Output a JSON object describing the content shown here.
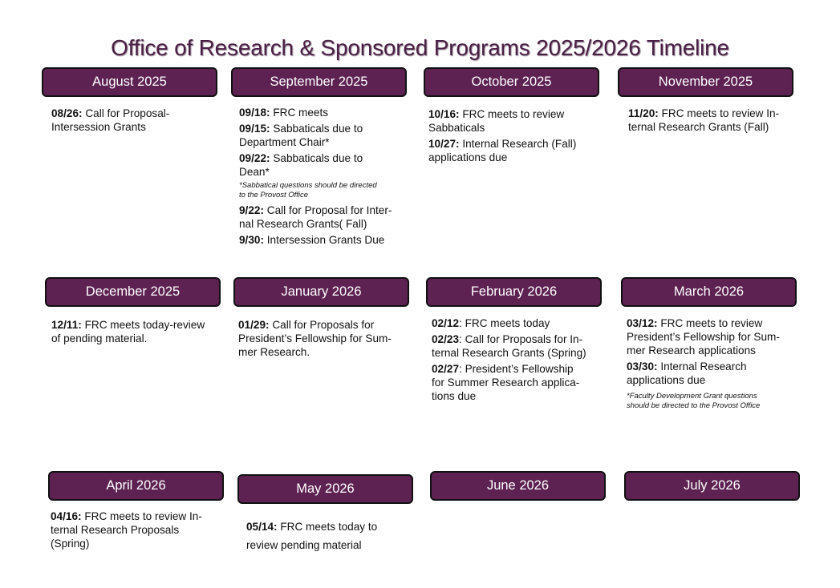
{
  "title": "Office of Research & Sponsored Programs 2025/2026 Timeline",
  "months": [
    {
      "name": "August 2025",
      "entries": [
        {
          "date": "08/26:",
          "text": " Call for Proposal-\nIntersession Grants"
        }
      ]
    },
    {
      "name": "September 2025",
      "entries": [
        {
          "date": "09/18:",
          "text": " FRC meets"
        },
        {
          "date": "09/15:",
          "text": " Sabbaticals due to\nDepartment Chair*"
        },
        {
          "date": "09/22:",
          "text": " Sabbaticals due to\nDean*"
        },
        {
          "date": "9/22:",
          "text": " Call for Proposal for Inter-\nnal Research  Grants( Fall)"
        },
        {
          "date": "9/30:",
          "text": " Intersession Grants Due"
        }
      ],
      "note": "*Sabbatical questions should be directed\nto the Provost Office"
    },
    {
      "name": "October 2025",
      "entries": [
        {
          "date": "10/16:",
          "text": " FRC meets to review\nSabbaticals"
        },
        {
          "date": "10/27:",
          "text": " Internal Research  (Fall)\napplications due"
        }
      ]
    },
    {
      "name": "November 2025",
      "entries": [
        {
          "date": "11/20:",
          "text": " FRC meets to review In-\nternal Research Grants (Fall)"
        }
      ]
    },
    {
      "name": "December 2025",
      "entries": [
        {
          "date": "12/11:",
          "text": " FRC meets today-review\nof pending material."
        }
      ]
    },
    {
      "name": "January 2026",
      "entries": [
        {
          "date": "01/29:",
          "text": " Call for Proposals for\nPresident’s Fellowship for Sum-\nmer Research."
        }
      ]
    },
    {
      "name": "February 2026",
      "entries": [
        {
          "date": "02/12",
          "text": ": FRC meets today"
        },
        {
          "date": "02/23",
          "text": ": Call for Proposals for In-\nternal Research Grants (Spring)"
        },
        {
          "date": "02/27",
          "text": ": President’s Fellowship\nfor Summer Research applica-\ntions due"
        }
      ]
    },
    {
      "name": "March 2026",
      "entries": [
        {
          "date": "03/12:",
          "text": " FRC meets to review\nPresident’s Fellowship for Sum-\nmer Research applications"
        },
        {
          "date": "03/30:",
          "text": " Internal Research\napplications due"
        }
      ],
      "note": "*Faculty Development Grant questions\nshould be directed to the Provost Office"
    },
    {
      "name": "April 2026",
      "entries": [
        {
          "date": "04/16:",
          "text": " FRC meets to review In-\nternal Research Proposals\n(Spring)"
        }
      ]
    },
    {
      "name": "May 2026",
      "entries": [
        {
          "date": "05/14:",
          "text": " FRC meets today to\nreview pending material"
        }
      ]
    },
    {
      "name": "June 2026",
      "entries": []
    },
    {
      "name": "July 2026",
      "entries": []
    }
  ],
  "colors": {
    "header_bg": "#5d2252",
    "title": "#4a1f45"
  }
}
